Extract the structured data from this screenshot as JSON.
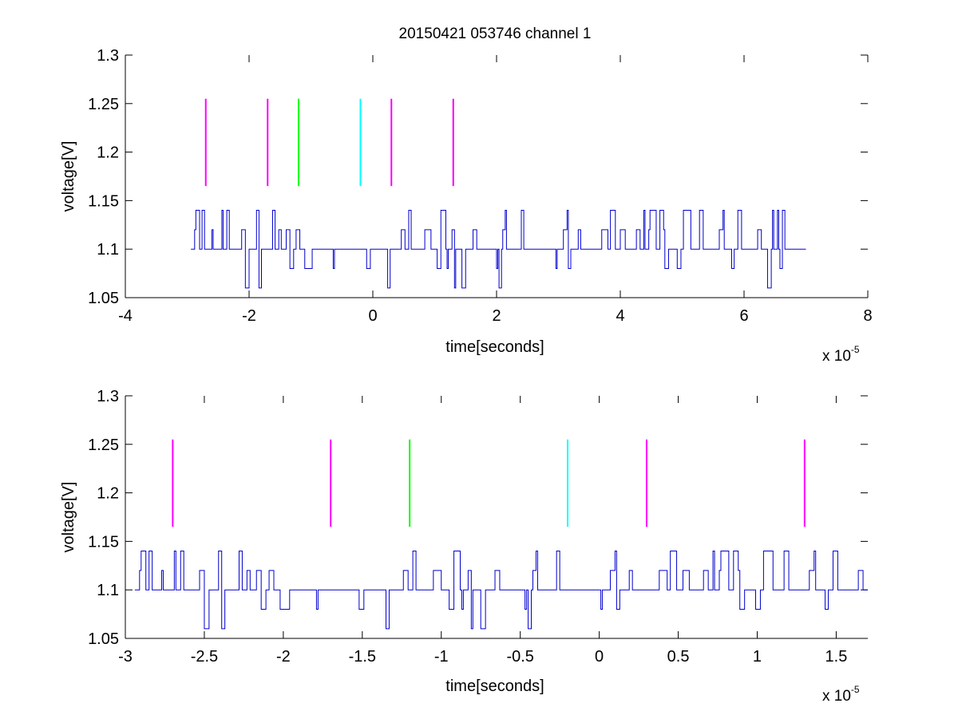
{
  "figure": {
    "title": "20150421 053746 channel 1"
  },
  "colors": {
    "signal": "#0000cc",
    "marker_magenta": "#ff00ff",
    "marker_green": "#00ff00",
    "marker_cyan": "#00ffff",
    "axes": "#000000"
  },
  "chart_data": [
    {
      "type": "line",
      "title": "20150421 053746 channel 1",
      "xlabel": "time[seconds]",
      "ylabel": "voltage[V]",
      "x_multiplier_base": "x 10",
      "x_multiplier_exp": "-5",
      "xlim": [
        -4,
        8
      ],
      "ylim": [
        1.05,
        1.3
      ],
      "xticks": [
        -4,
        -2,
        0,
        2,
        4,
        6,
        8
      ],
      "xtick_labels": [
        "-4",
        "-2",
        "0",
        "2",
        "4",
        "6",
        "8"
      ],
      "yticks": [
        1.05,
        1.1,
        1.15,
        1.2,
        1.25,
        1.3
      ],
      "ytick_labels": [
        "1.05",
        "1.1",
        "1.15",
        "1.2",
        "1.25",
        "1.3"
      ],
      "grid": false,
      "signal": {
        "x_start": -2.94,
        "x_end": 7.0,
        "baseline": 1.1,
        "levels": [
          1.06,
          1.08,
          1.1,
          1.12,
          1.14
        ],
        "sample_step": 0.02
      },
      "markers": [
        {
          "x": -2.7,
          "y_range": [
            1.165,
            1.255
          ],
          "color": "magenta"
        },
        {
          "x": -1.7,
          "y_range": [
            1.165,
            1.255
          ],
          "color": "magenta"
        },
        {
          "x": -1.2,
          "y_range": [
            1.165,
            1.255
          ],
          "color": "green"
        },
        {
          "x": -0.2,
          "y_range": [
            1.165,
            1.255
          ],
          "color": "cyan"
        },
        {
          "x": 0.3,
          "y_range": [
            1.165,
            1.255
          ],
          "color": "magenta"
        },
        {
          "x": 1.3,
          "y_range": [
            1.165,
            1.255
          ],
          "color": "magenta"
        }
      ]
    },
    {
      "type": "line",
      "title": "",
      "xlabel": "time[seconds]",
      "ylabel": "voltage[V]",
      "x_multiplier_base": "x 10",
      "x_multiplier_exp": "-5",
      "xlim": [
        -3.0,
        1.7
      ],
      "ylim": [
        1.05,
        1.3
      ],
      "xticks": [
        -3,
        -2.5,
        -2,
        -1.5,
        -1,
        -0.5,
        0,
        0.5,
        1,
        1.5
      ],
      "xtick_labels": [
        "-3",
        "-2.5",
        "-2",
        "-1.5",
        "-1",
        "-0.5",
        "0",
        "0.5",
        "1",
        "1.5"
      ],
      "yticks": [
        1.05,
        1.1,
        1.15,
        1.2,
        1.25,
        1.3
      ],
      "ytick_labels": [
        "1.05",
        "1.1",
        "1.15",
        "1.2",
        "1.25",
        "1.3"
      ],
      "grid": false,
      "signal": {
        "x_start": -2.94,
        "x_end": 1.7,
        "baseline": 1.1,
        "levels": [
          1.06,
          1.08,
          1.1,
          1.12,
          1.14
        ],
        "sample_step": 0.01
      },
      "markers": [
        {
          "x": -2.7,
          "y_range": [
            1.165,
            1.255
          ],
          "color": "magenta"
        },
        {
          "x": -1.7,
          "y_range": [
            1.165,
            1.255
          ],
          "color": "magenta"
        },
        {
          "x": -1.2,
          "y_range": [
            1.165,
            1.255
          ],
          "color": "green"
        },
        {
          "x": -0.2,
          "y_range": [
            1.165,
            1.255
          ],
          "color": "cyan"
        },
        {
          "x": 0.3,
          "y_range": [
            1.165,
            1.255
          ],
          "color": "magenta"
        },
        {
          "x": 1.3,
          "y_range": [
            1.165,
            1.255
          ],
          "color": "magenta"
        }
      ]
    }
  ]
}
